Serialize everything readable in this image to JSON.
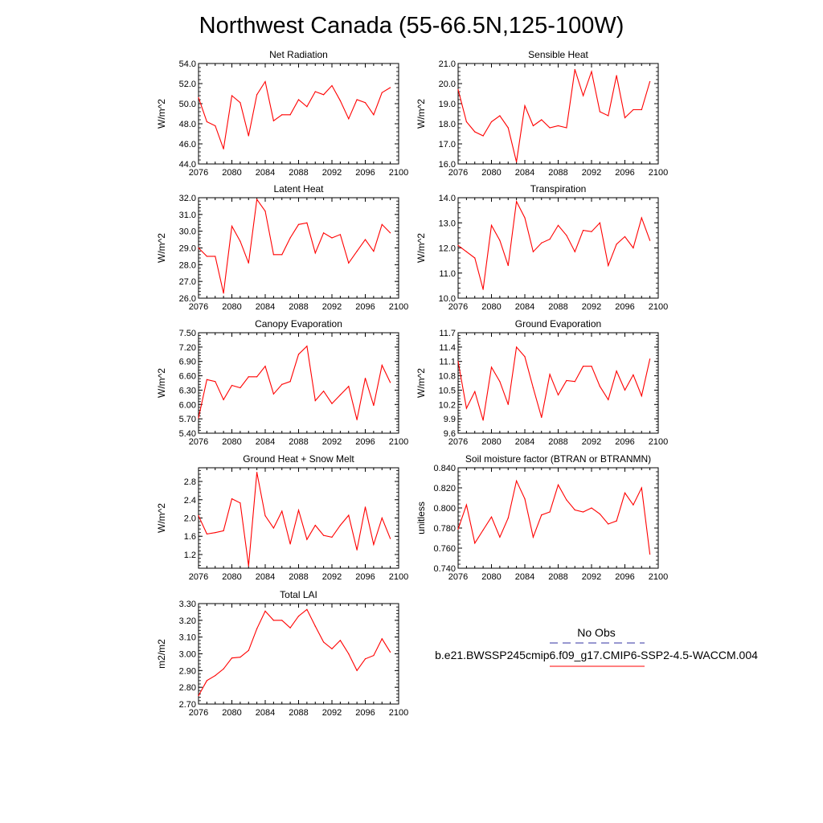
{
  "title": "Northwest Canada (55-66.5N,125-100W)",
  "colors": {
    "series": "#ff0000",
    "obs": "#3030a0",
    "axis": "#000000"
  },
  "legend": {
    "obs_label": "No Obs",
    "model_label": "b.e21.BWSSP245cmip6.f09_g17.CMIP6-SSP2-4.5-WACCM.004"
  },
  "chart_data": [
    {
      "type": "line",
      "title": "Net Radiation",
      "ylabel": "W/m^2",
      "xlim": [
        2076,
        2100
      ],
      "ylim": [
        44,
        54
      ],
      "xticks": [
        "2076",
        "2080",
        "2084",
        "2088",
        "2092",
        "2096",
        "2100"
      ],
      "yticks": [
        "44.0",
        "46.0",
        "48.0",
        "50.0",
        "52.0",
        "54.0"
      ],
      "x": [
        2076,
        2077,
        2078,
        2079,
        2080,
        2081,
        2082,
        2083,
        2084,
        2085,
        2086,
        2087,
        2088,
        2089,
        2090,
        2091,
        2092,
        2093,
        2094,
        2095,
        2096,
        2097,
        2098,
        2099
      ],
      "series": [
        {
          "values": [
            50.6,
            48.2,
            47.8,
            45.5,
            50.8,
            50.1,
            46.8,
            50.9,
            52.2,
            48.3,
            48.9,
            48.9,
            50.4,
            49.7,
            51.2,
            50.9,
            51.8,
            50.3,
            48.5,
            50.4,
            50.1,
            48.9,
            51.1,
            51.6
          ]
        }
      ]
    },
    {
      "type": "line",
      "title": "Sensible Heat",
      "ylabel": "W/m^2",
      "xlim": [
        2076,
        2100
      ],
      "ylim": [
        16,
        21
      ],
      "xticks": [
        "2076",
        "2080",
        "2084",
        "2088",
        "2092",
        "2096",
        "2100"
      ],
      "yticks": [
        "16.0",
        "17.0",
        "18.0",
        "19.0",
        "20.0",
        "21.0"
      ],
      "x": [
        2076,
        2077,
        2078,
        2079,
        2080,
        2081,
        2082,
        2083,
        2084,
        2085,
        2086,
        2087,
        2088,
        2089,
        2090,
        2091,
        2092,
        2093,
        2094,
        2095,
        2096,
        2097,
        2098,
        2099
      ],
      "series": [
        {
          "values": [
            19.7,
            18.1,
            17.6,
            17.4,
            18.1,
            18.4,
            17.8,
            16.1,
            18.9,
            17.9,
            18.2,
            17.8,
            17.9,
            17.8,
            20.7,
            19.4,
            20.6,
            18.6,
            18.4,
            20.4,
            18.3,
            18.7,
            18.7,
            20.1
          ]
        }
      ]
    },
    {
      "type": "line",
      "title": "Latent Heat",
      "ylabel": "W/m^2",
      "xlim": [
        2076,
        2100
      ],
      "ylim": [
        26,
        32
      ],
      "xticks": [
        "2076",
        "2080",
        "2084",
        "2088",
        "2092",
        "2096",
        "2100"
      ],
      "yticks": [
        "26.0",
        "27.0",
        "28.0",
        "29.0",
        "30.0",
        "31.0",
        "32.0"
      ],
      "x": [
        2076,
        2077,
        2078,
        2079,
        2080,
        2081,
        2082,
        2083,
        2084,
        2085,
        2086,
        2087,
        2088,
        2089,
        2090,
        2091,
        2092,
        2093,
        2094,
        2095,
        2096,
        2097,
        2098,
        2099
      ],
      "series": [
        {
          "values": [
            29.0,
            28.5,
            28.5,
            26.3,
            30.3,
            29.4,
            28.1,
            31.9,
            31.2,
            28.6,
            28.6,
            29.6,
            30.4,
            30.5,
            28.7,
            29.9,
            29.6,
            29.8,
            28.1,
            28.8,
            29.5,
            28.8,
            30.4,
            29.9
          ]
        }
      ]
    },
    {
      "type": "line",
      "title": "Transpiration",
      "ylabel": "W/m^2",
      "xlim": [
        2076,
        2100
      ],
      "ylim": [
        10,
        14
      ],
      "xticks": [
        "2076",
        "2080",
        "2084",
        "2088",
        "2092",
        "2096",
        "2100"
      ],
      "yticks": [
        "10.0",
        "11.0",
        "12.0",
        "13.0",
        "14.0"
      ],
      "x": [
        2076,
        2077,
        2078,
        2079,
        2080,
        2081,
        2082,
        2083,
        2084,
        2085,
        2086,
        2087,
        2088,
        2089,
        2090,
        2091,
        2092,
        2093,
        2094,
        2095,
        2096,
        2097,
        2098,
        2099
      ],
      "series": [
        {
          "values": [
            12.1,
            11.85,
            11.6,
            10.35,
            12.9,
            12.3,
            11.3,
            13.85,
            13.2,
            11.85,
            12.2,
            12.35,
            12.9,
            12.5,
            11.85,
            12.7,
            12.65,
            13.0,
            11.3,
            12.15,
            12.45,
            12.0,
            13.2,
            12.3
          ]
        }
      ]
    },
    {
      "type": "line",
      "title": "Canopy Evaporation",
      "ylabel": "W/m^2",
      "xlim": [
        2076,
        2100
      ],
      "ylim": [
        5.4,
        7.5
      ],
      "xticks": [
        "2076",
        "2080",
        "2084",
        "2088",
        "2092",
        "2096",
        "2100"
      ],
      "yticks": [
        "5.40",
        "5.70",
        "6.00",
        "6.30",
        "6.60",
        "6.90",
        "7.20",
        "7.50"
      ],
      "x": [
        2076,
        2077,
        2078,
        2079,
        2080,
        2081,
        2082,
        2083,
        2084,
        2085,
        2086,
        2087,
        2088,
        2089,
        2090,
        2091,
        2092,
        2093,
        2094,
        2095,
        2096,
        2097,
        2098,
        2099
      ],
      "series": [
        {
          "values": [
            5.72,
            6.52,
            6.48,
            6.1,
            6.4,
            6.35,
            6.58,
            6.58,
            6.8,
            6.22,
            6.42,
            6.48,
            7.05,
            7.22,
            6.08,
            6.28,
            6.02,
            6.2,
            6.38,
            5.68,
            6.55,
            5.98,
            6.82,
            6.46
          ]
        }
      ]
    },
    {
      "type": "line",
      "title": "Ground Evaporation",
      "ylabel": "W/m^2",
      "xlim": [
        2076,
        2100
      ],
      "ylim": [
        9.6,
        11.7
      ],
      "xticks": [
        "2076",
        "2080",
        "2084",
        "2088",
        "2092",
        "2096",
        "2100"
      ],
      "yticks": [
        "9.6",
        "9.9",
        "10.2",
        "10.5",
        "10.8",
        "11.1",
        "11.4",
        "11.7"
      ],
      "x": [
        2076,
        2077,
        2078,
        2079,
        2080,
        2081,
        2082,
        2083,
        2084,
        2085,
        2086,
        2087,
        2088,
        2089,
        2090,
        2091,
        2092,
        2093,
        2094,
        2095,
        2096,
        2097,
        2098,
        2099
      ],
      "series": [
        {
          "values": [
            11.1,
            10.12,
            10.47,
            9.87,
            10.98,
            10.68,
            10.2,
            11.4,
            11.2,
            10.55,
            9.93,
            10.83,
            10.4,
            10.7,
            10.68,
            11.0,
            11.0,
            10.58,
            10.3,
            10.9,
            10.5,
            10.82,
            10.38,
            11.15
          ]
        }
      ]
    },
    {
      "type": "line",
      "title": "Ground Heat + Snow Melt",
      "ylabel": "W/m^2",
      "xlim": [
        2076,
        2100
      ],
      "ylim": [
        0.9,
        3.1
      ],
      "xticks": [
        "2076",
        "2080",
        "2084",
        "2088",
        "2092",
        "2096",
        "2100"
      ],
      "yticks": [
        "1.2",
        "1.6",
        "2.0",
        "2.4",
        "2.8"
      ],
      "x": [
        2076,
        2077,
        2078,
        2079,
        2080,
        2081,
        2082,
        2083,
        2084,
        2085,
        2086,
        2087,
        2088,
        2089,
        2090,
        2091,
        2092,
        2093,
        2094,
        2095,
        2096,
        2097,
        2098,
        2099
      ],
      "series": [
        {
          "values": [
            2.05,
            1.65,
            1.68,
            1.72,
            2.42,
            2.33,
            0.95,
            3.0,
            2.05,
            1.78,
            2.15,
            1.43,
            2.17,
            1.53,
            1.84,
            1.62,
            1.58,
            1.84,
            2.06,
            1.3,
            2.24,
            1.42,
            2.0,
            1.55
          ]
        }
      ]
    },
    {
      "type": "line",
      "title": "Soil moisture factor (BTRAN or BTRANMN)",
      "ylabel": "unitless",
      "xlim": [
        2076,
        2100
      ],
      "ylim": [
        0.74,
        0.84
      ],
      "xticks": [
        "2076",
        "2080",
        "2084",
        "2088",
        "2092",
        "2096",
        "2100"
      ],
      "yticks": [
        "0.740",
        "0.760",
        "0.780",
        "0.800",
        "0.820",
        "0.840"
      ],
      "x": [
        2076,
        2077,
        2078,
        2079,
        2080,
        2081,
        2082,
        2083,
        2084,
        2085,
        2086,
        2087,
        2088,
        2089,
        2090,
        2091,
        2092,
        2093,
        2094,
        2095,
        2096,
        2097,
        2098,
        2099
      ],
      "series": [
        {
          "values": [
            0.779,
            0.803,
            0.765,
            0.778,
            0.791,
            0.771,
            0.79,
            0.827,
            0.809,
            0.771,
            0.793,
            0.796,
            0.823,
            0.808,
            0.798,
            0.796,
            0.8,
            0.794,
            0.784,
            0.787,
            0.815,
            0.803,
            0.82,
            0.754
          ]
        }
      ]
    },
    {
      "type": "line",
      "title": "Total LAI",
      "ylabel": "m2/m2",
      "xlim": [
        2076,
        2100
      ],
      "ylim": [
        2.7,
        3.3
      ],
      "xticks": [
        "2076",
        "2080",
        "2084",
        "2088",
        "2092",
        "2096",
        "2100"
      ],
      "yticks": [
        "2.70",
        "2.80",
        "2.90",
        "3.00",
        "3.10",
        "3.20",
        "3.30"
      ],
      "x": [
        2076,
        2077,
        2078,
        2079,
        2080,
        2081,
        2082,
        2083,
        2084,
        2085,
        2086,
        2087,
        2088,
        2089,
        2090,
        2091,
        2092,
        2093,
        2094,
        2095,
        2096,
        2097,
        2098,
        2099
      ],
      "series": [
        {
          "values": [
            2.75,
            2.84,
            2.87,
            2.91,
            2.975,
            2.98,
            3.02,
            3.15,
            3.255,
            3.2,
            3.2,
            3.155,
            3.225,
            3.265,
            3.165,
            3.07,
            3.03,
            3.08,
            3.0,
            2.9,
            2.97,
            2.99,
            3.09,
            3.01
          ]
        }
      ]
    }
  ]
}
